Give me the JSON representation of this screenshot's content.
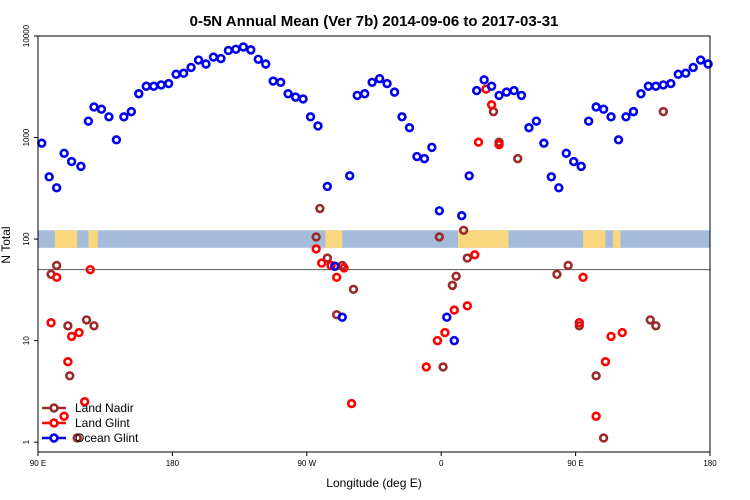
{
  "chart_data": {
    "type": "scatter",
    "title": "0-5N Annual Mean (Ver 7b)   2014-09-06 to 2017-03-31",
    "xlabel": "Longitude (deg E)",
    "ylabel": "N Total",
    "xlim": [
      90,
      450
    ],
    "ylim": [
      0.8,
      10000
    ],
    "yscale": "log",
    "x_ticks": [
      {
        "value": 90,
        "label": "90 E"
      },
      {
        "value": 162,
        "label": "180"
      },
      {
        "value": 234,
        "label": "90 W"
      },
      {
        "value": 306,
        "label": "0"
      },
      {
        "value": 378,
        "label": "90 E"
      },
      {
        "value": 450,
        "label": "180"
      }
    ],
    "y_ticks": [
      {
        "value": 1,
        "label": "1"
      },
      {
        "value": 10,
        "label": "10"
      },
      {
        "value": 100,
        "label": "100"
      },
      {
        "value": 1000,
        "label": "1000"
      },
      {
        "value": 10000,
        "label": "10000"
      }
    ],
    "reference_line": 50,
    "land_band": {
      "y_low": 82,
      "y_high": 122,
      "ocean_color": "#a4bbd9",
      "land_color": "#f9d77e"
    },
    "land_segments": [
      [
        99,
        111
      ],
      [
        117,
        122
      ],
      [
        244,
        253
      ],
      [
        315,
        342
      ],
      [
        382,
        394
      ],
      [
        398,
        402
      ]
    ],
    "series": [
      {
        "name": "Land Nadir",
        "color": "#9b2b2b",
        "x": [
          97,
          100,
          106,
          107,
          111,
          116,
          120,
          239,
          241,
          245,
          250,
          253,
          259,
          305,
          307,
          312,
          314,
          318,
          320,
          334,
          337,
          347,
          368,
          374,
          380,
          389,
          393,
          418,
          421,
          425
        ],
        "y": [
          45,
          55,
          14,
          4.5,
          1.1,
          16,
          14,
          105,
          200,
          65,
          18,
          55,
          32,
          105,
          5.5,
          35,
          43,
          122,
          65,
          1800,
          900,
          620,
          45,
          55,
          14,
          4.5,
          1.1,
          16,
          14,
          1800
        ]
      },
      {
        "name": "Land Glint",
        "color": "#ff0000",
        "x": [
          97,
          100,
          104,
          106,
          108,
          112,
          115,
          118,
          239,
          242,
          247,
          250,
          254,
          258,
          298,
          304,
          308,
          313,
          320,
          324,
          326,
          330,
          333,
          337,
          380,
          382,
          389,
          394,
          397,
          403
        ],
        "y": [
          15,
          42,
          1.8,
          6.2,
          11,
          12,
          2.5,
          50,
          80,
          58,
          55,
          42,
          52,
          2.4,
          5.5,
          10,
          12,
          20,
          22,
          70,
          900,
          3000,
          2100,
          850,
          15,
          42,
          1.8,
          6.2,
          11,
          12
        ]
      },
      {
        "name": "Ocean Glint",
        "color": "#0000ee",
        "x": [
          92,
          96,
          100,
          104,
          108,
          113,
          117,
          120,
          124,
          128,
          132,
          136,
          140,
          144,
          148,
          152,
          156,
          160,
          164,
          168,
          172,
          176,
          180,
          184,
          188,
          192,
          196,
          200,
          204,
          208,
          212,
          216,
          220,
          224,
          228,
          232,
          236,
          240,
          245,
          249,
          253,
          257,
          261,
          265,
          269,
          273,
          277,
          281,
          285,
          289,
          293,
          297,
          301,
          305,
          309,
          313,
          317,
          321,
          325,
          329,
          333,
          337,
          341,
          345,
          349,
          353,
          357,
          361,
          365,
          369,
          373,
          377,
          381,
          385,
          389,
          393,
          397,
          401,
          405,
          409,
          413,
          417,
          421,
          425,
          429,
          433,
          437,
          441,
          445,
          449
        ],
        "y": [
          880,
          410,
          320,
          700,
          580,
          520,
          1450,
          2000,
          1900,
          1600,
          950,
          1600,
          1800,
          2700,
          3200,
          3200,
          3300,
          3400,
          4200,
          4300,
          4900,
          5800,
          5300,
          6200,
          6000,
          7200,
          7400,
          7800,
          7300,
          5900,
          5300,
          3600,
          3500,
          2700,
          2500,
          2400,
          1600,
          1300,
          330,
          54,
          17,
          420,
          2600,
          2700,
          3500,
          3800,
          3400,
          2800,
          1600,
          1250,
          650,
          620,
          800,
          190,
          17,
          10,
          170,
          420,
          2900,
          3700,
          3200,
          2600,
          2800,
          2900,
          2600,
          1250,
          1450,
          880,
          410,
          320,
          700,
          580,
          520,
          1450,
          2000,
          1900,
          1600,
          950,
          1600,
          1800,
          2700,
          3200,
          3200,
          3300,
          3400,
          4200,
          4300,
          4900,
          5800,
          5300
        ]
      }
    ],
    "legend_position": "bottom-left"
  }
}
